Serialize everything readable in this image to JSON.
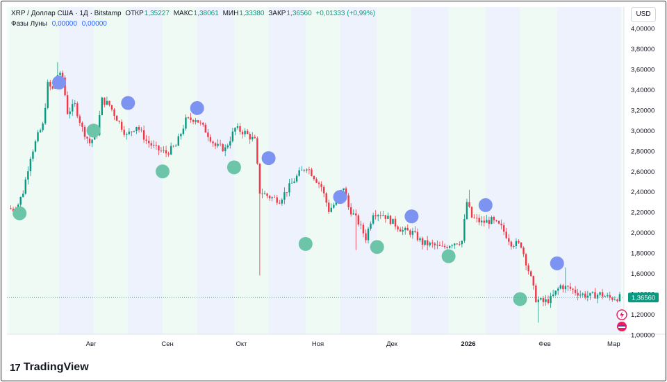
{
  "header": {
    "symbol": "XRP / Доллар США · 1Д · Bitstamp",
    "open_label": "ОТКР",
    "open": "1,35227",
    "high_label": "МАКС",
    "high": "1,38061",
    "low_label": "МИН",
    "low": "1,33380",
    "close_label": "ЗАКР",
    "close": "1,36560",
    "change": "+0,01333 (+0,99%)",
    "indicator_name": "Фазы Луны",
    "indicator_v1": "0,00000",
    "indicator_v2": "0,00000"
  },
  "currency_button": "USD",
  "last_price_label": "1,36560",
  "brand": "TradingView",
  "colors": {
    "up": "#089981",
    "down": "#f23645",
    "full_moon": "#7c93f2",
    "new_moon": "#6cc5a8",
    "price_label": "#089981",
    "price_line": "#26a69a"
  },
  "chart_data": {
    "type": "candlestick",
    "ylim": [
      1.0,
      4.0
    ],
    "y_ticks": [
      "4,00000",
      "3,80000",
      "3,60000",
      "3,40000",
      "3,20000",
      "3,00000",
      "2,80000",
      "2,60000",
      "2,40000",
      "2,20000",
      "2,00000",
      "1,80000",
      "1,60000",
      "1,40000",
      "1,20000",
      "1,00000"
    ],
    "x_ticks": [
      {
        "label": "Авг",
        "day": 33,
        "bold": false
      },
      {
        "label": "Сен",
        "day": 64,
        "bold": false
      },
      {
        "label": "Окт",
        "day": 94,
        "bold": false
      },
      {
        "label": "Ноя",
        "day": 125,
        "bold": false
      },
      {
        "label": "Дек",
        "day": 155,
        "bold": false
      },
      {
        "label": "2026",
        "day": 186,
        "bold": true
      },
      {
        "label": "Фев",
        "day": 217,
        "bold": false
      },
      {
        "label": "Мар",
        "day": 245,
        "bold": false
      }
    ],
    "last_price": 1.3656,
    "total_days": 248,
    "price_path": [
      [
        0,
        2.24
      ],
      [
        3,
        2.22
      ],
      [
        6,
        2.4
      ],
      [
        9,
        2.75
      ],
      [
        12,
        2.95
      ],
      [
        14,
        3.05
      ],
      [
        16,
        3.45
      ],
      [
        18,
        3.4
      ],
      [
        20,
        3.55
      ],
      [
        22,
        3.52
      ],
      [
        24,
        3.18
      ],
      [
        27,
        3.25
      ],
      [
        30,
        3.02
      ],
      [
        33,
        2.88
      ],
      [
        36,
        2.98
      ],
      [
        38,
        3.3
      ],
      [
        41,
        3.25
      ],
      [
        44,
        3.12
      ],
      [
        48,
        2.95
      ],
      [
        52,
        3.05
      ],
      [
        56,
        2.9
      ],
      [
        60,
        2.82
      ],
      [
        64,
        2.78
      ],
      [
        68,
        2.85
      ],
      [
        72,
        3.1
      ],
      [
        76,
        3.12
      ],
      [
        80,
        3.0
      ],
      [
        84,
        2.85
      ],
      [
        88,
        2.82
      ],
      [
        92,
        3.02
      ],
      [
        96,
        2.98
      ],
      [
        100,
        2.9
      ],
      [
        102,
        2.4
      ],
      [
        106,
        2.35
      ],
      [
        110,
        2.32
      ],
      [
        114,
        2.45
      ],
      [
        118,
        2.58
      ],
      [
        121,
        2.65
      ],
      [
        124,
        2.55
      ],
      [
        127,
        2.45
      ],
      [
        130,
        2.22
      ],
      [
        133,
        2.3
      ],
      [
        136,
        2.45
      ],
      [
        138,
        2.25
      ],
      [
        142,
        2.1
      ],
      [
        145,
        1.95
      ],
      [
        148,
        2.2
      ],
      [
        152,
        2.18
      ],
      [
        156,
        2.1
      ],
      [
        160,
        2.02
      ],
      [
        164,
        2.0
      ],
      [
        168,
        1.9
      ],
      [
        172,
        1.88
      ],
      [
        176,
        1.85
      ],
      [
        180,
        1.9
      ],
      [
        184,
        1.92
      ],
      [
        186,
        2.3
      ],
      [
        188,
        2.15
      ],
      [
        192,
        2.1
      ],
      [
        196,
        2.12
      ],
      [
        200,
        2.05
      ],
      [
        204,
        1.9
      ],
      [
        208,
        1.88
      ],
      [
        212,
        1.55
      ],
      [
        214,
        1.35
      ],
      [
        217,
        1.32
      ],
      [
        220,
        1.35
      ],
      [
        224,
        1.48
      ],
      [
        228,
        1.45
      ],
      [
        232,
        1.4
      ],
      [
        236,
        1.38
      ],
      [
        240,
        1.4
      ],
      [
        244,
        1.36
      ],
      [
        248,
        1.3656
      ]
    ],
    "wicks": [
      {
        "day": 101,
        "low": 1.58
      },
      {
        "day": 19,
        "high": 3.67
      },
      {
        "day": 186,
        "high": 2.42
      },
      {
        "day": 214,
        "low": 1.12
      },
      {
        "day": 140,
        "low": 1.83
      },
      {
        "day": 225,
        "high": 1.66
      }
    ],
    "moon_phases": [
      {
        "day": 4,
        "price": 2.19,
        "phase": "new"
      },
      {
        "day": 20,
        "price": 3.47,
        "phase": "full"
      },
      {
        "day": 34,
        "price": 3.0,
        "phase": "new"
      },
      {
        "day": 48,
        "price": 3.27,
        "phase": "full"
      },
      {
        "day": 62,
        "price": 2.6,
        "phase": "new"
      },
      {
        "day": 76,
        "price": 3.22,
        "phase": "full"
      },
      {
        "day": 91,
        "price": 2.64,
        "phase": "new"
      },
      {
        "day": 105,
        "price": 2.73,
        "phase": "full"
      },
      {
        "day": 120,
        "price": 1.89,
        "phase": "new"
      },
      {
        "day": 134,
        "price": 2.35,
        "phase": "full"
      },
      {
        "day": 149,
        "price": 1.86,
        "phase": "new"
      },
      {
        "day": 163,
        "price": 2.16,
        "phase": "full"
      },
      {
        "day": 178,
        "price": 1.77,
        "phase": "new"
      },
      {
        "day": 193,
        "price": 2.27,
        "phase": "full"
      },
      {
        "day": 207,
        "price": 1.35,
        "phase": "new"
      },
      {
        "day": 222,
        "price": 1.7,
        "phase": "full"
      }
    ]
  }
}
